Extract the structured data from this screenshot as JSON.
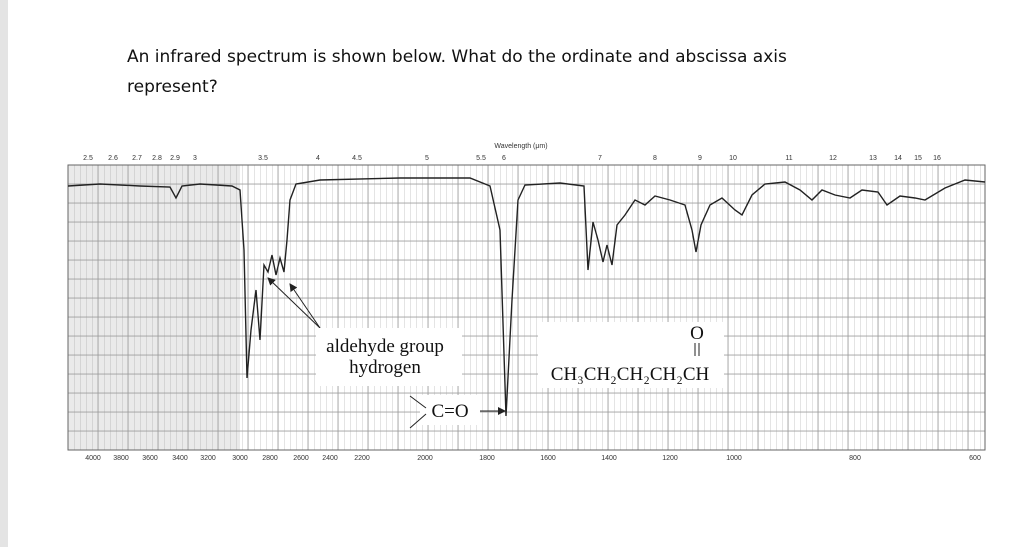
{
  "question": {
    "line1": "An infrared spectrum is shown below. What do the ordinate and abscissa axis",
    "line2": "represent?"
  },
  "spectrum": {
    "top_axis_title": "Wavelength (μm)",
    "top_ticks": [
      "2.5",
      "2.6",
      "2.7",
      "2.8",
      "2.9",
      "3",
      "3.5",
      "4",
      "4.5",
      "5",
      "5.5",
      "6",
      "7",
      "8",
      "9",
      "10",
      "11",
      "12",
      "13",
      "14",
      "15",
      "16"
    ],
    "bottom_ticks": [
      "4000",
      "3800",
      "3600",
      "3400",
      "3200",
      "3000",
      "2800",
      "2600",
      "2400",
      "2200",
      "2000",
      "1800",
      "1600",
      "1400",
      "1200",
      "1000",
      "800",
      "600"
    ],
    "annotations": {
      "aldehyde_line1": "aldehyde group",
      "aldehyde_line2": "hydrogen",
      "carbonyl": "C=O",
      "formula_oxygen": "O",
      "formula": "CH₃CH₂CH₂CH₂CH"
    }
  }
}
